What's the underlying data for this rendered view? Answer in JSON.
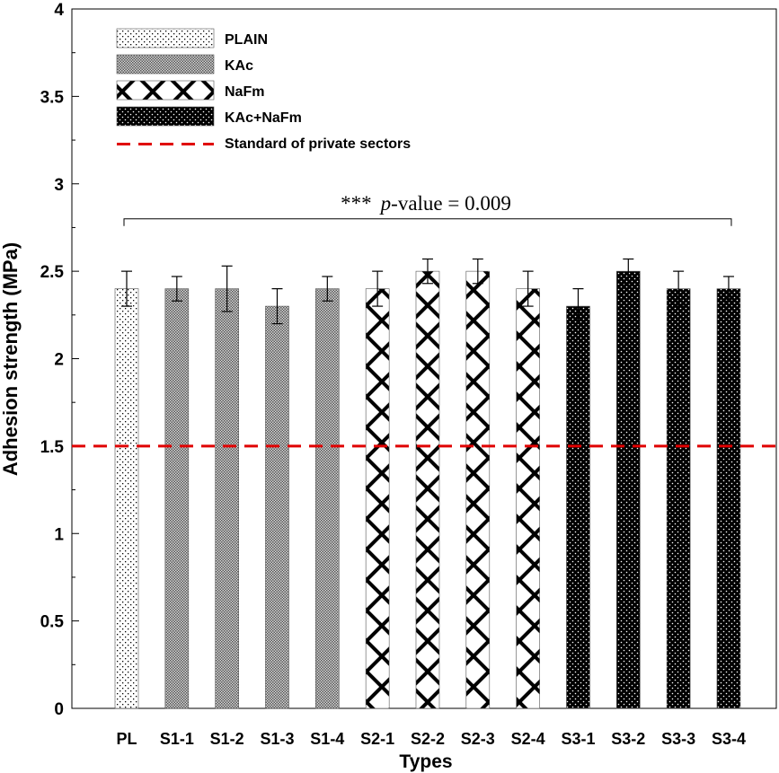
{
  "chart_data": {
    "type": "bar",
    "title": "",
    "xlabel": "Types",
    "ylabel": "Adhesion strength (MPa)",
    "ylim": [
      0,
      4
    ],
    "yticks": [
      "0",
      "0.5",
      "1",
      "1.5",
      "2",
      "2.5",
      "3",
      "3.5",
      "4"
    ],
    "ytick_values": [
      0,
      0.5,
      1,
      1.5,
      2,
      2.5,
      3,
      3.5,
      4
    ],
    "categories": [
      "PL",
      "S1-1",
      "S1-2",
      "S1-3",
      "S1-4",
      "S2-1",
      "S2-2",
      "S2-3",
      "S2-4",
      "S3-1",
      "S3-2",
      "S3-3",
      "S3-4"
    ],
    "values": [
      2.4,
      2.4,
      2.4,
      2.3,
      2.4,
      2.4,
      2.5,
      2.5,
      2.4,
      2.3,
      2.5,
      2.4,
      2.4
    ],
    "errors": [
      0.1,
      0.07,
      0.13,
      0.1,
      0.07,
      0.1,
      0.07,
      0.07,
      0.1,
      0.1,
      0.07,
      0.1,
      0.07
    ],
    "groups": [
      "PLAIN",
      "KAc",
      "KAc",
      "KAc",
      "KAc",
      "NaFm",
      "NaFm",
      "NaFm",
      "NaFm",
      "KAc+NaFm",
      "KAc+NaFm",
      "KAc+NaFm",
      "KAc+NaFm"
    ],
    "legend": [
      {
        "key": "PLAIN",
        "label": "PLAIN",
        "pattern": "dots-sparse"
      },
      {
        "key": "KAc",
        "label": "KAc",
        "pattern": "checker-fine"
      },
      {
        "key": "NaFm",
        "label": "NaFm",
        "pattern": "crosses"
      },
      {
        "key": "KAc+NaFm",
        "label": "KAc+NaFm",
        "pattern": "black-white-dots"
      },
      {
        "key": "standard",
        "label": "Standard of private sectors",
        "pattern": "red-dashed-line"
      }
    ],
    "reference_line": {
      "value": 1.5,
      "label": "Standard of private sectors",
      "color": "#e00000"
    },
    "annotation": {
      "stars": "***",
      "p_label": "p",
      "rest": "-value = 0.009",
      "value_y": 2.8,
      "from": "PL",
      "to": "S3-4"
    },
    "legend_position": "top-left",
    "grid": false
  }
}
